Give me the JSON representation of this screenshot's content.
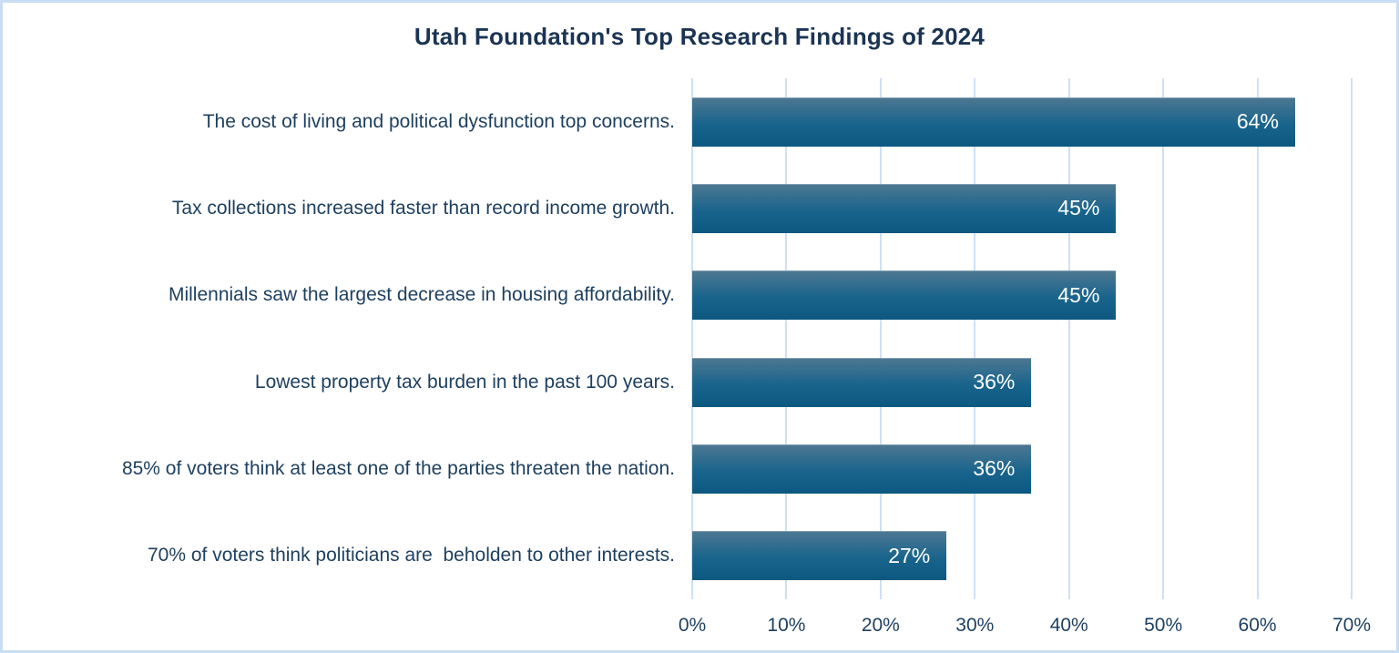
{
  "title": "Utah Foundation's Top Research Findings of 2024",
  "colors": {
    "border": "#c9ddf3",
    "background": "#ffffff",
    "title_text": "#1b3453",
    "label_text": "#1d3f5f",
    "gridline": "#cfe0f4",
    "bar_gradient_top": "#4e7892",
    "bar_gradient_bottom": "#0c5880",
    "bar_value_text": "#ffffff"
  },
  "chart_data": {
    "type": "bar",
    "orientation": "horizontal",
    "title": "Utah Foundation's Top Research Findings of 2024",
    "categories": [
      "The cost of living and political dysfunction top concerns.",
      "Tax collections increased faster than record income growth.",
      "Millennials saw the largest decrease in housing affordability.",
      "Lowest property tax burden in the past 100 years.",
      "85% of voters think at least one of the parties threaten the nation.",
      "70% of voters think politicians are  beholden to other interests."
    ],
    "values": [
      64,
      45,
      45,
      36,
      36,
      27
    ],
    "value_labels": [
      "64%",
      "45%",
      "45%",
      "36%",
      "36%",
      "27%"
    ],
    "xlabel": "",
    "ylabel": "",
    "xlim": [
      0,
      70
    ],
    "x_ticks": [
      0,
      10,
      20,
      30,
      40,
      50,
      60,
      70
    ],
    "x_tick_labels": [
      "0%",
      "10%",
      "20%",
      "30%",
      "40%",
      "50%",
      "60%",
      "70%"
    ],
    "grid": "vertical-gridlines",
    "legend": "none"
  }
}
